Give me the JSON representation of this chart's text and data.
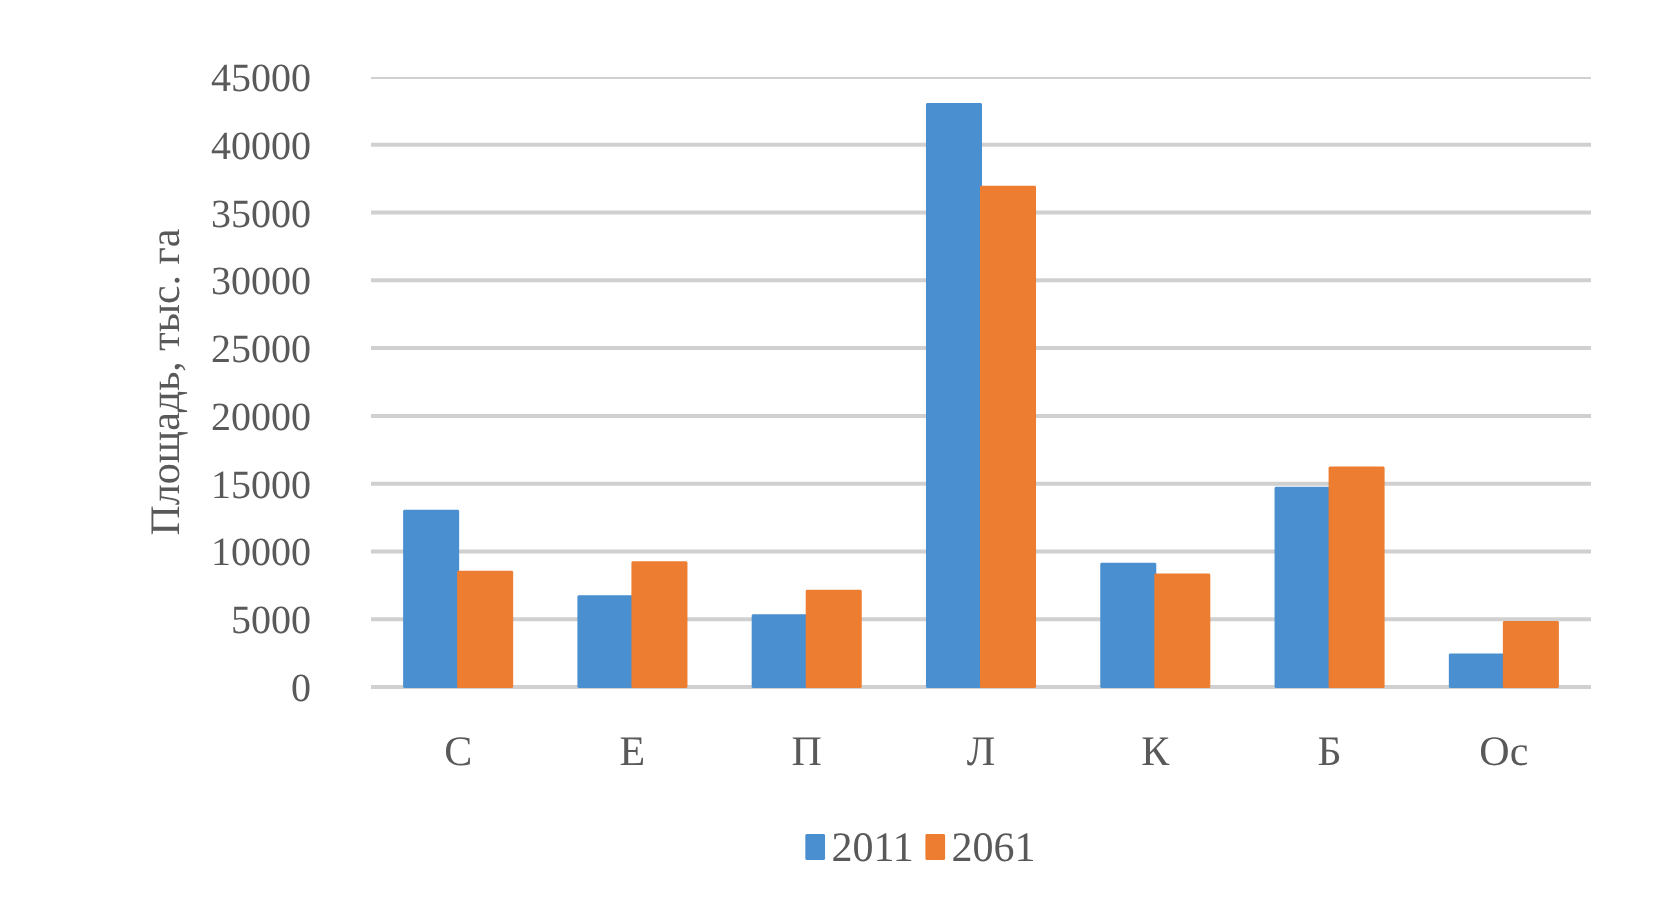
{
  "chart_data": {
    "type": "bar",
    "categories": [
      "С",
      "Е",
      "П",
      "Л",
      "К",
      "Б",
      "Ос"
    ],
    "series": [
      {
        "name": "2011",
        "color": "#4a8fd0",
        "values": [
          13000,
          6700,
          5300,
          43000,
          9100,
          14700,
          2400
        ]
      },
      {
        "name": "2061",
        "color": "#ed7d31",
        "values": [
          8500,
          9200,
          7100,
          36900,
          8300,
          16200,
          4800
        ]
      }
    ],
    "ylabel": "Площадь, тыс. га",
    "ylim": [
      0,
      45000
    ],
    "yticks": [
      0,
      5000,
      10000,
      15000,
      20000,
      25000,
      30000,
      35000,
      40000,
      45000
    ],
    "grid": "y",
    "legend": "bottom"
  }
}
